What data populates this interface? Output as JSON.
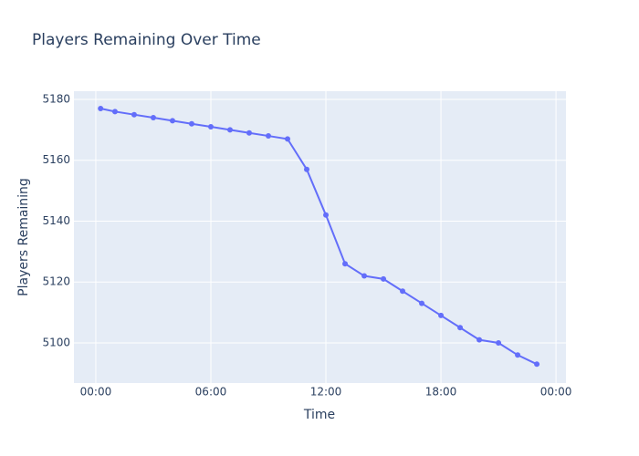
{
  "chart_data": {
    "type": "line",
    "title": "Players Remaining Over Time",
    "x_label": "Time",
    "y_label": "Players Remaining",
    "x": [
      0.25,
      1,
      2,
      3,
      4,
      5,
      6,
      7,
      8,
      9,
      10,
      11,
      12,
      13,
      14,
      15,
      16,
      17,
      18,
      19,
      20,
      21,
      22,
      23
    ],
    "values": [
      5177,
      5176,
      5175,
      5174,
      5173,
      5172,
      5171,
      5170,
      5169,
      5168,
      5167,
      5157,
      5142,
      5126,
      5122,
      5121,
      5117,
      5113,
      5109,
      5105,
      5101,
      5100,
      5096,
      5093
    ],
    "color": "#636efa",
    "xlim": [
      -1.14,
      24.52
    ],
    "xticks": [
      {
        "value": 0,
        "label": "00:00"
      },
      {
        "value": 6,
        "label": "06:00"
      },
      {
        "value": 12,
        "label": "12:00"
      },
      {
        "value": 18,
        "label": "18:00"
      },
      {
        "value": 24,
        "label": "00:00"
      }
    ],
    "ylim": [
      5086.8,
      5182.7
    ],
    "yticks": [
      5100,
      5120,
      5140,
      5160,
      5180
    ],
    "grid": true
  }
}
